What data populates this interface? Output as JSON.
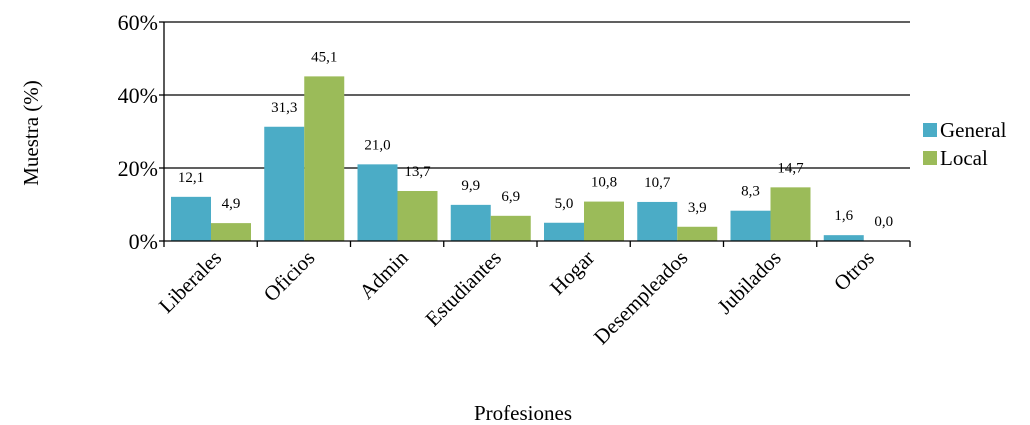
{
  "chart_data": {
    "type": "bar",
    "title": "",
    "xlabel": "Profesiones",
    "ylabel": "Muestra (%)",
    "categories": [
      "Liberales",
      "Oficios",
      "Admin",
      "Estudiantes",
      "Hogar",
      "Desempleados",
      "Jubilados",
      "Otros"
    ],
    "series": [
      {
        "name": "General",
        "color": "#4BACC6",
        "values": [
          12.1,
          31.3,
          21.0,
          9.9,
          5.0,
          10.7,
          8.3,
          1.6
        ],
        "labels": [
          "12,1",
          "31,3",
          "21,0",
          "9,9",
          "5,0",
          "10,7",
          "8,3",
          "1,6"
        ]
      },
      {
        "name": "Local",
        "color": "#9BBB59",
        "values": [
          4.9,
          45.1,
          13.7,
          6.9,
          10.8,
          3.9,
          14.7,
          0.0
        ],
        "labels": [
          "4,9",
          "45,1",
          "13,7",
          "6,9",
          "10,8",
          "3,9",
          "14,7",
          "0,0"
        ]
      }
    ],
    "ylim": [
      0,
      60
    ],
    "yticks": [
      0,
      20,
      40,
      60
    ],
    "ytick_labels": [
      "0%",
      "20%",
      "40%",
      "60%"
    ],
    "grid": true,
    "legend_position": "right"
  }
}
